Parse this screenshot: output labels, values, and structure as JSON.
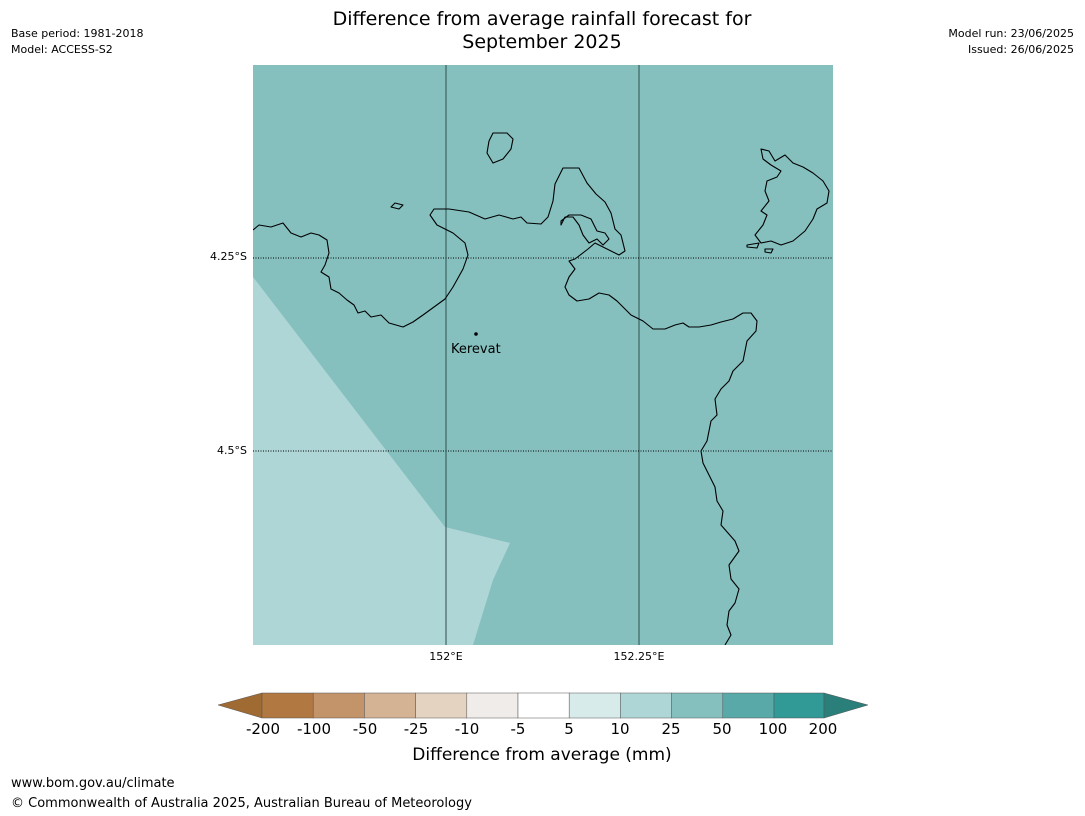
{
  "header": {
    "title_line1": "Difference from average rainfall forecast for",
    "title_line2": "September 2025",
    "base_period": "Base period: 1981-2018",
    "model": "Model: ACCESS-S2",
    "model_run": "Model run: 23/06/2025",
    "issued": "Issued: 26/06/2025"
  },
  "map": {
    "lat_labels": [
      "4.25°S",
      "4.5°S"
    ],
    "lon_labels": [
      "152°E",
      "152.25°E"
    ],
    "place_label": "Kerevat",
    "colors": {
      "class_25_50": "#85c0bf",
      "class_10_25": "#aed6d6",
      "coastline": "#000000",
      "gridline": "#2f4f4f"
    }
  },
  "legend": {
    "title": "Difference from average (mm)",
    "tick_labels": [
      "-200",
      "-100",
      "-50",
      "-25",
      "-10",
      "-5",
      "5",
      "10",
      "25",
      "50",
      "100",
      "200"
    ],
    "colors": [
      "#a06a33",
      "#b17842",
      "#c39469",
      "#d4b294",
      "#e5d3c2",
      "#f0ecea",
      "#ffffff",
      "#d8ebeb",
      "#aed6d6",
      "#85c0bf",
      "#5aa9a9",
      "#319996",
      "#2a7f7b"
    ]
  },
  "footer": {
    "url": "www.bom.gov.au/climate",
    "copyright": "© Commonwealth of Australia 2025, Australian Bureau of Meteorology"
  }
}
